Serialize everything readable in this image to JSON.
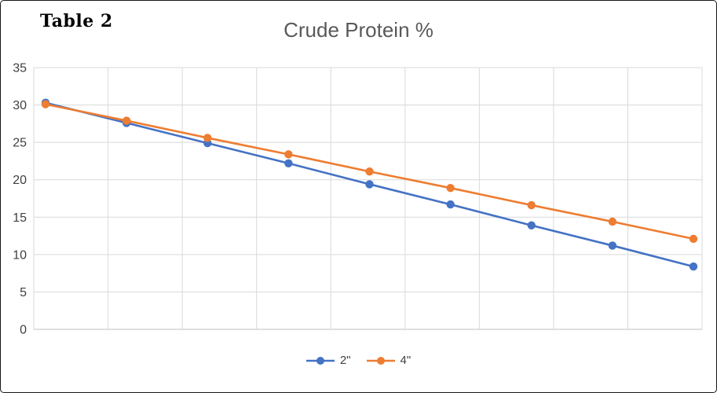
{
  "annotation": {
    "label": "Table 2"
  },
  "chart_data": {
    "type": "line",
    "title": "Crude Protein %",
    "xlabel": "",
    "ylabel": "",
    "ylim": [
      0,
      35
    ],
    "yticks": [
      0,
      5,
      10,
      15,
      20,
      25,
      30,
      35
    ],
    "x_axis_tick_labels_visible": false,
    "vertical_gridlines": 10,
    "grid": {
      "horizontal": true,
      "vertical": true,
      "color": "#d9d9d9",
      "axis_line_color": "#bfbfbf"
    },
    "legend_position": "bottom",
    "series": [
      {
        "name": "2\"",
        "color": "#4472c4",
        "values": [
          30.3,
          27.6,
          24.9,
          22.2,
          19.4,
          16.7,
          13.9,
          11.2,
          8.4
        ]
      },
      {
        "name": "4\"",
        "color": "#ed7d31",
        "values": [
          30.1,
          27.9,
          25.6,
          23.4,
          21.1,
          18.9,
          16.6,
          14.4,
          12.1
        ]
      }
    ],
    "text_colors": {
      "title": "#595959",
      "axis_labels": "#404040"
    }
  }
}
